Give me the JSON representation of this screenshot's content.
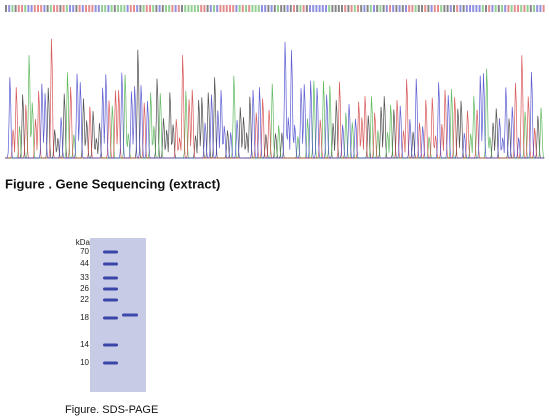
{
  "figures": [
    {
      "caption": "Figure . Gene Sequencing (extract)"
    },
    {
      "caption": "Figure. SDS-PAGE",
      "unit": "kDa",
      "markers": [
        "70",
        "44",
        "33",
        "26",
        "22",
        "18",
        "14",
        "10"
      ]
    }
  ]
}
